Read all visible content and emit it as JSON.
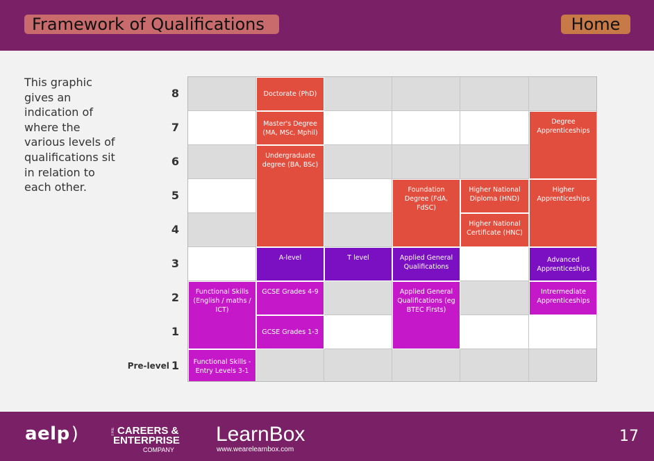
{
  "header": {
    "title": "Framework of Qualifications",
    "home_label": "Home"
  },
  "intro": "This graphic gives an indication of where the various levels of qualifications sit in relation to each other.",
  "levels": [
    {
      "prefix": "",
      "num": "8"
    },
    {
      "prefix": "",
      "num": "7"
    },
    {
      "prefix": "",
      "num": "6"
    },
    {
      "prefix": "",
      "num": "5"
    },
    {
      "prefix": "",
      "num": "4"
    },
    {
      "prefix": "",
      "num": "3"
    },
    {
      "prefix": "",
      "num": "2"
    },
    {
      "prefix": "",
      "num": "1"
    },
    {
      "prefix": "Pre-level",
      "num": "1"
    }
  ],
  "colors": {
    "red": "#e24e3e",
    "purple": "#7a10c2",
    "magenta": "#c519c9",
    "header": "#7a2066",
    "title_bg": "#c96a6d",
    "home_bg": "#c77a48"
  },
  "qualifications": [
    {
      "label": "Doctorate (PhD)",
      "col": 1,
      "row": 0,
      "rowspan": 1,
      "colspan": 1,
      "color": "red",
      "valign": "middle"
    },
    {
      "label": "Master's Degree (MA, MSc, Mphil)",
      "col": 1,
      "row": 1,
      "rowspan": 1,
      "colspan": 1,
      "color": "red",
      "valign": "middle"
    },
    {
      "label": "Undergraduate degree (BA, BSc)",
      "col": 1,
      "row": 2,
      "rowspan": 3,
      "colspan": 1,
      "color": "red",
      "valign": "top"
    },
    {
      "label": "Degree Apprenticeships",
      "col": 5,
      "row": 1,
      "rowspan": 2,
      "colspan": 1,
      "color": "red",
      "valign": "top"
    },
    {
      "label": "Foundation Degree (FdA, FdSC)",
      "col": 3,
      "row": 3,
      "rowspan": 2,
      "colspan": 1,
      "color": "red",
      "valign": "top"
    },
    {
      "label": "Higher National Diploma (HND)",
      "col": 4,
      "row": 3,
      "rowspan": 1,
      "colspan": 1,
      "color": "red",
      "valign": "top"
    },
    {
      "label": "Higher National Certificate (HNC)",
      "col": 4,
      "row": 4,
      "rowspan": 1,
      "colspan": 1,
      "color": "red",
      "valign": "top"
    },
    {
      "label": "Higher Apprenticeships",
      "col": 5,
      "row": 3,
      "rowspan": 2,
      "colspan": 1,
      "color": "red",
      "valign": "top"
    },
    {
      "label": "A-level",
      "col": 1,
      "row": 5,
      "rowspan": 1,
      "colspan": 1,
      "color": "purple",
      "valign": "top"
    },
    {
      "label": "T level",
      "col": 2,
      "row": 5,
      "rowspan": 1,
      "colspan": 1,
      "color": "purple",
      "valign": "top"
    },
    {
      "label": "Applied General Qualifications",
      "col": 3,
      "row": 5,
      "rowspan": 1,
      "colspan": 1,
      "color": "purple",
      "valign": "top"
    },
    {
      "label": "Advanced Apprenticeships",
      "col": 5,
      "row": 5,
      "rowspan": 1,
      "colspan": 1,
      "color": "purple",
      "valign": "middle"
    },
    {
      "label": "Functional Skills (English / maths / ICT)",
      "col": 0,
      "row": 6,
      "rowspan": 2,
      "colspan": 1,
      "color": "magenta",
      "valign": "top"
    },
    {
      "label": "GCSE Grades 4-9",
      "col": 1,
      "row": 6,
      "rowspan": 1,
      "colspan": 1,
      "color": "magenta",
      "valign": "top"
    },
    {
      "label": "GCSE Grades 1-3",
      "col": 1,
      "row": 7,
      "rowspan": 1,
      "colspan": 1,
      "color": "magenta",
      "valign": "middle"
    },
    {
      "label": "Applied General Qualifications (eg BTEC Firsts)",
      "col": 3,
      "row": 6,
      "rowspan": 2,
      "colspan": 1,
      "color": "magenta",
      "valign": "top"
    },
    {
      "label": "Intrermediate Apprenticeships",
      "col": 5,
      "row": 6,
      "rowspan": 1,
      "colspan": 1,
      "color": "magenta",
      "valign": "top"
    },
    {
      "label": "Functional Skills - Entry Levels 3-1",
      "col": 0,
      "row": 8,
      "rowspan": 1,
      "colspan": 1,
      "color": "magenta",
      "valign": "middle"
    }
  ],
  "footer": {
    "aelp": "aelp",
    "cec_the": "THE",
    "cec_line1": "CAREERS &",
    "cec_line2": "ENTERPRISE",
    "cec_line3": "COMPANY",
    "learnbox_name": "LearnBox",
    "learnbox_url": "www.wearelearnbox.com",
    "page_number": "17"
  }
}
